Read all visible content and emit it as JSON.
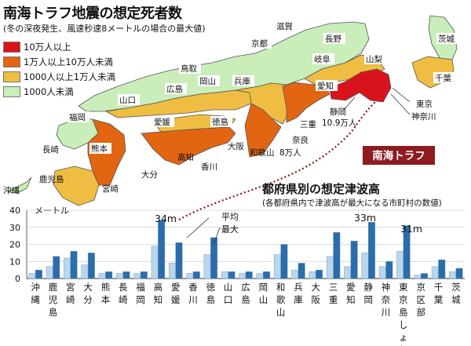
{
  "header": {
    "title": "南海トラフ地震の想定死者数",
    "subtitle": "(冬の深夜発生、風速秒速8メートルの場合の最大値)"
  },
  "map": {
    "legend": [
      {
        "label": "10万人以上",
        "color": "#d9131c"
      },
      {
        "label": "1万人以上10万人未満",
        "color": "#e26512"
      },
      {
        "label": "1000人以上1万人未満",
        "color": "#efbd42"
      },
      {
        "label": "1000人未満",
        "color": "#c9eeb9"
      }
    ],
    "labels": {
      "kyoto": "京都",
      "shiga": "滋賀",
      "nagano": "長野",
      "ibaraki": "茨城",
      "yamanashi": "山梨",
      "gifu": "岐阜",
      "chiba": "千葉",
      "tottori": "鳥取",
      "yamaguchi": "山口",
      "hiroshima": "広島",
      "okayama": "岡山",
      "hyogo": "兵庫",
      "aichi": "愛知",
      "shizuoka": "静岡",
      "shizuoka_count": "10.9万人",
      "tokyo": "東京",
      "kanagawa": "神奈川",
      "fukuoka": "福岡",
      "ehime": "愛媛",
      "tokushima": "徳島",
      "mie": "三重",
      "nara": "奈良",
      "nagasaki": "長崎",
      "kumamoto": "熊本",
      "osaka": "大阪",
      "wakayama": "和歌山",
      "wakayama_count": "8万人",
      "kochi": "高知",
      "kagawa": "香川",
      "oita": "大分",
      "okinawa": "沖縄",
      "kagoshima": "鹿児島",
      "miyazaki": "宮崎",
      "trough": "南海トラフ"
    }
  },
  "chart_data": {
    "type": "bar",
    "title": "都府県別の想定津波高",
    "subtitle": "(各都府県内で津波高が最大になる市町村の数値)",
    "ylabel": "メートル",
    "ylim": [
      0,
      40
    ],
    "yticks": [
      0,
      10,
      20,
      30,
      40
    ],
    "categories": [
      "沖縄",
      "鹿児島",
      "宮崎",
      "大分",
      "熊本",
      "長崎",
      "福岡",
      "高知",
      "愛媛",
      "香川",
      "徳島",
      "山口",
      "広島",
      "岡山",
      "和歌山",
      "兵庫",
      "大阪",
      "三重",
      "愛知",
      "静岡",
      "神奈川",
      "東京(島しょ部)",
      "東京区部",
      "千葉",
      "茨城"
    ],
    "category_display": [
      "沖縄",
      "鹿児島",
      "宮崎",
      "大分",
      "熊本",
      "長崎",
      "福岡",
      "高知",
      "愛媛",
      "香川",
      "徳島",
      "山口",
      "広島",
      "岡山",
      "和歌山",
      "兵庫",
      "大阪",
      "三重",
      "愛知",
      "静岡",
      "神奈川",
      "東京島しょ部",
      "京区部",
      "千葉",
      "茨城"
    ],
    "series": [
      {
        "name": "平均",
        "color": "#b9d6ec",
        "values": [
          3,
          7,
          12,
          8,
          3,
          3,
          3,
          19,
          9,
          3,
          14,
          4,
          3,
          3,
          14,
          5,
          4,
          13,
          7,
          15,
          7,
          16,
          2,
          7,
          4
        ]
      },
      {
        "name": "最大",
        "color": "#2b6cab",
        "values": [
          5,
          13,
          16,
          15,
          4,
          4,
          4,
          34,
          21,
          4,
          24,
          4,
          4,
          4,
          20,
          9,
          5,
          27,
          22,
          33,
          10,
          31,
          3,
          11,
          6
        ]
      }
    ],
    "annotations": {
      "kochi": "34m",
      "shizuoka": "33m",
      "tokyo_islands": "31m"
    }
  }
}
